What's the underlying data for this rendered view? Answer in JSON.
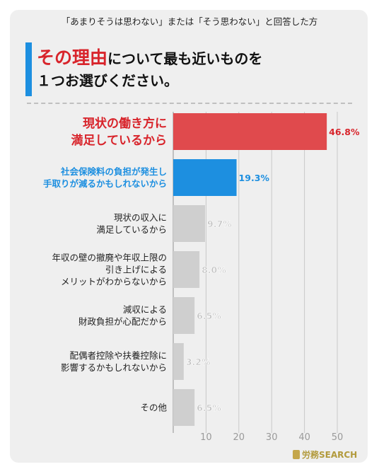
{
  "header": {
    "subtitle": "「あまりそうは思わない」または「そう思わない」と回答した方",
    "title_highlight": "その理由",
    "title_rest_1": "について最も近いものを",
    "title_line_2": "１つお選びください。"
  },
  "brand": {
    "text": "労務SEARCH"
  },
  "colors": {
    "red": "#e04a4d",
    "red_text": "#d8242b",
    "blue": "#1d8fe0",
    "gray": "#cfcfcf",
    "label": "#222222",
    "gray_label": "#bfbfbf"
  },
  "chart_data": {
    "type": "bar",
    "orientation": "horizontal",
    "categories": [
      [
        "現状の働き方に",
        "満足しているから"
      ],
      [
        "社会保険料の負担が発生し",
        "手取りが減るかもしれないから"
      ],
      [
        "現状の収入に",
        "満足しているから"
      ],
      [
        "年収の壁の撤廃や年収上限の",
        "引き上げによる",
        "メリットがわからないから"
      ],
      [
        "減収による",
        "財政負担が心配だから"
      ],
      [
        "配偶者控除や扶養控除に",
        "影響するかもしれないから"
      ],
      [
        "その他"
      ]
    ],
    "values": [
      46.8,
      19.3,
      9.7,
      8.0,
      6.5,
      3.2,
      6.5
    ],
    "value_labels": [
      "46.8%",
      "19.3%",
      "9.7%",
      "8.0%",
      "6.5%",
      "3.2%",
      "6.5%"
    ],
    "highlight": [
      "red",
      "blue",
      "gray",
      "gray",
      "gray",
      "gray",
      "gray"
    ],
    "xticks": [
      "10",
      "20",
      "30",
      "40",
      "50"
    ],
    "xlim": [
      0,
      50
    ],
    "grid": true
  }
}
